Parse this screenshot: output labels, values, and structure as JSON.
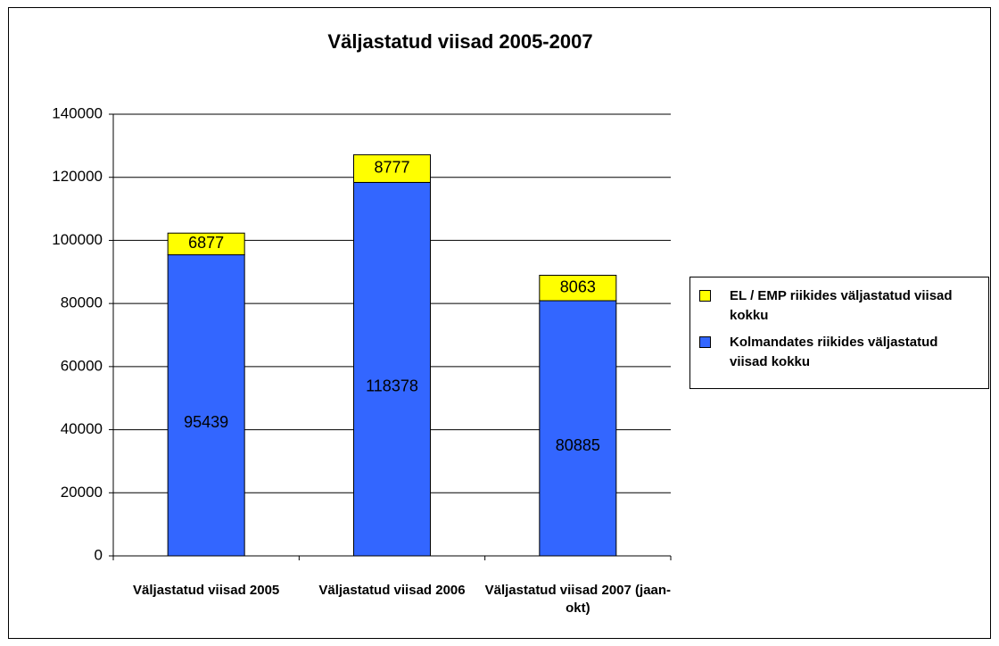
{
  "chart_data": {
    "type": "stacked_bar",
    "title": "Väljastatud viisad 2005-2007",
    "categories": [
      "Väljastatud viisad 2005",
      "Väljastatud viisad 2006",
      "Väljastatud viisad 2007 (jaan-okt)"
    ],
    "series": [
      {
        "name": "Kolmandates riikides väljastatud viisad kokku",
        "color": "#3366ff",
        "values": [
          95439,
          118378,
          80885
        ]
      },
      {
        "name": "EL / EMP riikides väljastatud viisad kokku",
        "color": "#ffff00",
        "values": [
          6877,
          8777,
          8063
        ]
      }
    ],
    "ylim": [
      0,
      140000
    ],
    "yticks": [
      0,
      20000,
      40000,
      60000,
      80000,
      100000,
      120000,
      140000
    ],
    "grid": true
  }
}
